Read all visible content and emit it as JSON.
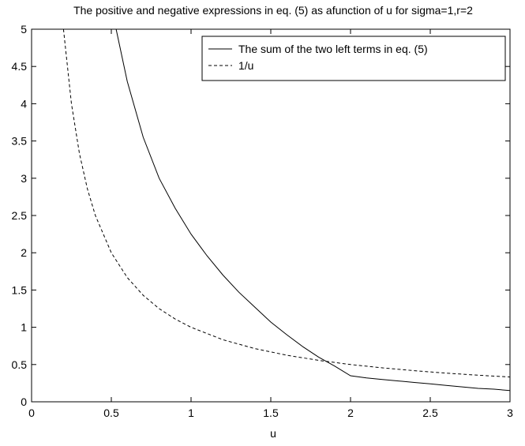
{
  "chart_data": {
    "type": "line",
    "title": "The positive and negative expressions in eq. (5) as afunction of u for sigma=1,r=2",
    "xlabel": "u",
    "ylabel": "",
    "xlim": [
      0,
      3
    ],
    "ylim": [
      0,
      5
    ],
    "xticks": [
      0,
      0.5,
      1,
      1.5,
      2,
      2.5,
      3
    ],
    "xtick_labels": [
      "0",
      "0.5",
      "1",
      "1.5",
      "2",
      "2.5",
      "3"
    ],
    "yticks": [
      0,
      0.5,
      1,
      1.5,
      2,
      2.5,
      3,
      3.5,
      4,
      4.5,
      5
    ],
    "ytick_labels": [
      "0",
      "0.5",
      "1",
      "1.5",
      "2",
      "2.5",
      "3",
      "3.5",
      "4",
      "4.5",
      "5"
    ],
    "grid": false,
    "legend_position": "top-right",
    "series": [
      {
        "name": "The sum of the two left terms in eq. (5)",
        "style": "solid",
        "color": "#000000",
        "x": [
          0.53,
          0.6,
          0.7,
          0.8,
          0.9,
          1.0,
          1.1,
          1.2,
          1.3,
          1.4,
          1.5,
          1.6,
          1.7,
          1.8,
          1.9,
          2.0,
          2.1,
          2.2,
          2.3,
          2.4,
          2.5,
          2.6,
          2.7,
          2.8,
          2.9,
          3.0
        ],
        "y": [
          5.0,
          4.3,
          3.55,
          3.0,
          2.6,
          2.25,
          1.96,
          1.7,
          1.47,
          1.27,
          1.07,
          0.9,
          0.74,
          0.6,
          0.48,
          0.35,
          0.32,
          0.3,
          0.28,
          0.26,
          0.24,
          0.22,
          0.2,
          0.18,
          0.17,
          0.15
        ]
      },
      {
        "name": "1/u",
        "style": "dashed",
        "color": "#000000",
        "x": [
          0.2,
          0.25,
          0.3,
          0.35,
          0.4,
          0.5,
          0.6,
          0.7,
          0.8,
          0.9,
          1.0,
          1.2,
          1.4,
          1.6,
          1.8,
          2.0,
          2.2,
          2.4,
          2.6,
          2.8,
          3.0
        ],
        "y": [
          5.0,
          4.0,
          3.333,
          2.857,
          2.5,
          2.0,
          1.667,
          1.429,
          1.25,
          1.111,
          1.0,
          0.833,
          0.714,
          0.625,
          0.556,
          0.5,
          0.455,
          0.417,
          0.385,
          0.357,
          0.333
        ]
      }
    ]
  }
}
